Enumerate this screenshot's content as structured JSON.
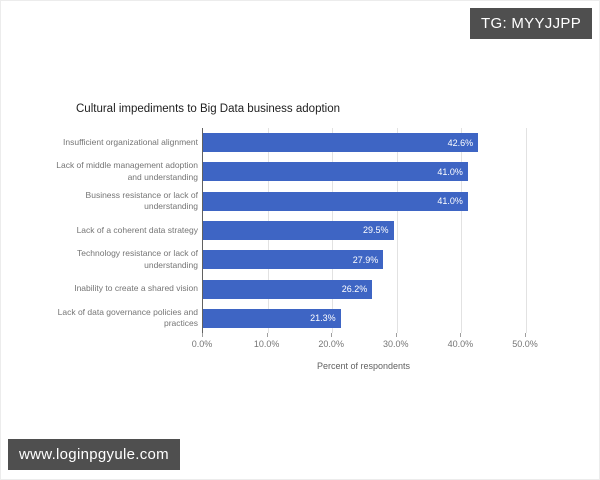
{
  "watermarks": {
    "tag": "TG: MYYJJPP",
    "url": "www.loginpgyule.com"
  },
  "chart_data": {
    "type": "bar",
    "orientation": "horizontal",
    "title": "Cultural impediments to Big Data business adoption",
    "categories": [
      "Insufficient organizational alignment",
      "Lack of middle management adoption and understanding",
      "Business resistance or lack of understanding",
      "Lack of a coherent data strategy",
      "Technology resistance or lack of understanding",
      "Inability to create a shared vision",
      "Lack of data governance policies and practices"
    ],
    "values": [
      42.6,
      41.0,
      41.0,
      29.5,
      27.9,
      26.2,
      21.3
    ],
    "value_labels": [
      "42.6%",
      "41.0%",
      "41.0%",
      "29.5%",
      "27.9%",
      "26.2%",
      "21.3%"
    ],
    "xlabel": "Percent of respondents",
    "ylabel": "",
    "xlim": [
      0,
      50
    ],
    "x_ticks": [
      "0.0%",
      "10.0%",
      "20.0%",
      "30.0%",
      "40.0%",
      "50.0%"
    ],
    "grid": true,
    "legend": "none",
    "bar_color": "#3e65c4",
    "value_label_color": "#ffffff"
  }
}
